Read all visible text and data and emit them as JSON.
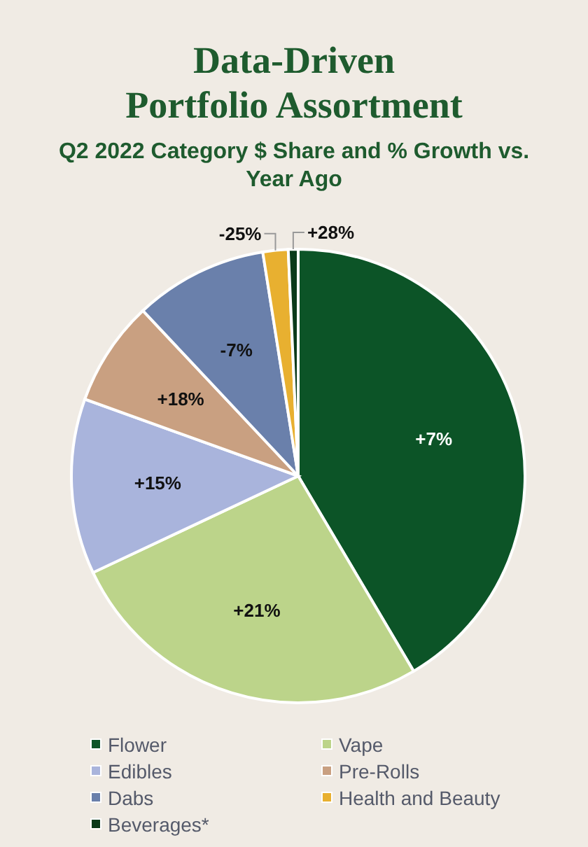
{
  "chart_data": {
    "type": "pie",
    "title": "Data-Driven\nPortfolio Assortment",
    "subtitle": "Q2 2022 Category $ Share and % Growth vs. Year Ago",
    "categories": [
      "Flower",
      "Vape",
      "Edibles",
      "Pre-Rolls",
      "Dabs",
      "Health and Beauty",
      "Beverages*"
    ],
    "values": [
      41.5,
      26.5,
      12.5,
      7.5,
      9.5,
      1.8,
      0.7
    ],
    "colors": [
      "#0c5427",
      "#bcd48a",
      "#a9b4dc",
      "#c9a081",
      "#6a80ab",
      "#e8b030",
      "#0a3a1a"
    ],
    "annotations": [
      {
        "text": "+7%",
        "x": "Flower"
      },
      {
        "text": "+21%",
        "x": "Vape"
      },
      {
        "text": "+15%",
        "x": "Edibles"
      },
      {
        "text": "+18%",
        "x": "Pre-Rolls"
      },
      {
        "text": "-7%",
        "x": "Dabs"
      },
      {
        "text": "-25%",
        "x": "Health and Beauty"
      },
      {
        "text": "+28%",
        "x": "Beverages*"
      }
    ],
    "legend": "bottom"
  }
}
